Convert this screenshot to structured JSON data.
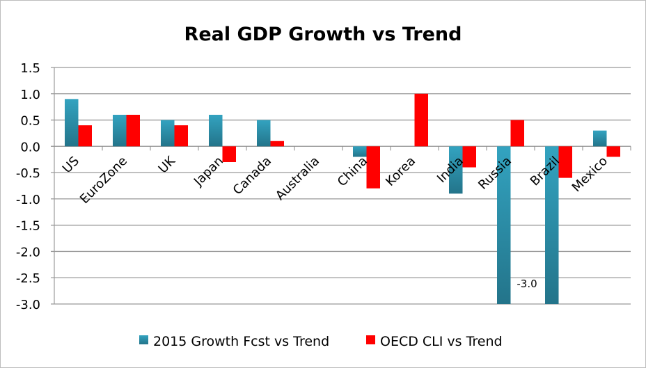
{
  "chart_data": {
    "type": "bar",
    "title": "Real GDP Growth vs Trend",
    "xlabel": "",
    "ylabel": "",
    "ylim": [
      -3.0,
      1.5
    ],
    "yticks": [
      "1.5",
      "1.0",
      "0.5",
      "0.0",
      "-0.5",
      "-1.0",
      "-1.5",
      "-2.0",
      "-2.5",
      "-3.0"
    ],
    "grid": true,
    "legend": "bottom",
    "categories": [
      "US",
      "EuroZone",
      "UK",
      "Japan",
      "Canada",
      "Australia",
      "China",
      "Korea",
      "India",
      "Russia",
      "Brazil",
      "Mexico"
    ],
    "series": [
      {
        "name": "2015 Growth Fcst vs Trend",
        "color": "#2e9bb8",
        "values": [
          0.9,
          0.6,
          0.5,
          0.6,
          0.5,
          0.0,
          -0.2,
          0.0,
          -0.9,
          -3.0,
          -3.0,
          0.3
        ]
      },
      {
        "name": "OECD CLI vs Trend",
        "color": "#ff0000",
        "values": [
          0.4,
          0.6,
          0.4,
          -0.3,
          0.1,
          0.0,
          -0.8,
          1.0,
          -0.4,
          0.5,
          -0.6,
          -0.2
        ]
      }
    ],
    "annotations": [
      {
        "text": "-3.0",
        "category": "Russia"
      }
    ]
  }
}
